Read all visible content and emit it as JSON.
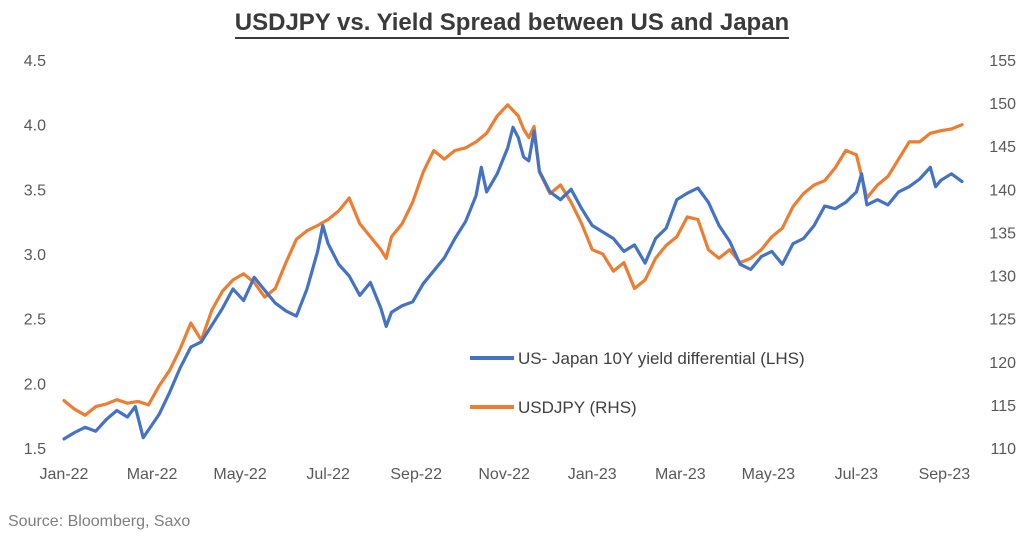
{
  "title": "USDJPY vs. Yield Spread between US and Japan",
  "source": "Source: Bloomberg, Saxo",
  "colors": {
    "spread": "#4472C4",
    "usdjpy": "#ED7D31",
    "tick_text": "#595959"
  },
  "chart_data": {
    "type": "line",
    "title": "USDJPY vs. Yield Spread between US and Japan",
    "xlabel": "",
    "ylabel_left": "",
    "ylabel_right": "",
    "x_range": [
      2022.0,
      2023.7
    ],
    "x_ticks": [
      {
        "label": "Jan-22",
        "t": 2022.0
      },
      {
        "label": "Mar-22",
        "t": 2022.1667
      },
      {
        "label": "May-22",
        "t": 2022.3333
      },
      {
        "label": "Jul-22",
        "t": 2022.5
      },
      {
        "label": "Sep-22",
        "t": 2022.6667
      },
      {
        "label": "Nov-22",
        "t": 2022.8333
      },
      {
        "label": "Jan-23",
        "t": 2023.0
      },
      {
        "label": "Mar-23",
        "t": 2023.1667
      },
      {
        "label": "May-23",
        "t": 2023.3333
      },
      {
        "label": "Jul-23",
        "t": 2023.5
      },
      {
        "label": "Sep-23",
        "t": 2023.6667
      }
    ],
    "ylim_left": [
      1.5,
      4.5
    ],
    "yticks_left": [
      "1.5",
      "2.0",
      "2.5",
      "3.0",
      "3.5",
      "4.0",
      "4.5"
    ],
    "ylim_right": [
      110,
      155
    ],
    "yticks_right": [
      "110",
      "115",
      "120",
      "125",
      "130",
      "135",
      "140",
      "145",
      "150",
      "155"
    ],
    "grid": false,
    "legend_position": "center-right",
    "series": [
      {
        "name": "US- Japan 10Y yield differential (LHS)",
        "axis": "left",
        "color": "#4472C4",
        "points": [
          [
            2022.0,
            1.57
          ],
          [
            2022.02,
            1.62
          ],
          [
            2022.04,
            1.66
          ],
          [
            2022.06,
            1.63
          ],
          [
            2022.08,
            1.72
          ],
          [
            2022.1,
            1.79
          ],
          [
            2022.12,
            1.74
          ],
          [
            2022.135,
            1.82
          ],
          [
            2022.15,
            1.58
          ],
          [
            2022.165,
            1.67
          ],
          [
            2022.18,
            1.76
          ],
          [
            2022.2,
            1.93
          ],
          [
            2022.22,
            2.12
          ],
          [
            2022.24,
            2.28
          ],
          [
            2022.26,
            2.32
          ],
          [
            2022.28,
            2.45
          ],
          [
            2022.3,
            2.58
          ],
          [
            2022.32,
            2.73
          ],
          [
            2022.34,
            2.64
          ],
          [
            2022.36,
            2.82
          ],
          [
            2022.38,
            2.72
          ],
          [
            2022.4,
            2.62
          ],
          [
            2022.42,
            2.56
          ],
          [
            2022.44,
            2.52
          ],
          [
            2022.46,
            2.73
          ],
          [
            2022.48,
            3.02
          ],
          [
            2022.49,
            3.22
          ],
          [
            2022.5,
            3.08
          ],
          [
            2022.52,
            2.92
          ],
          [
            2022.54,
            2.83
          ],
          [
            2022.56,
            2.68
          ],
          [
            2022.58,
            2.78
          ],
          [
            2022.6,
            2.58
          ],
          [
            2022.61,
            2.44
          ],
          [
            2022.62,
            2.55
          ],
          [
            2022.64,
            2.6
          ],
          [
            2022.66,
            2.63
          ],
          [
            2022.68,
            2.77
          ],
          [
            2022.7,
            2.87
          ],
          [
            2022.72,
            2.97
          ],
          [
            2022.74,
            3.12
          ],
          [
            2022.76,
            3.25
          ],
          [
            2022.78,
            3.45
          ],
          [
            2022.79,
            3.67
          ],
          [
            2022.8,
            3.48
          ],
          [
            2022.82,
            3.62
          ],
          [
            2022.84,
            3.82
          ],
          [
            2022.85,
            3.98
          ],
          [
            2022.86,
            3.9
          ],
          [
            2022.87,
            3.75
          ],
          [
            2022.88,
            3.72
          ],
          [
            2022.89,
            3.95
          ],
          [
            2022.9,
            3.64
          ],
          [
            2022.92,
            3.48
          ],
          [
            2022.94,
            3.42
          ],
          [
            2022.96,
            3.5
          ],
          [
            2022.98,
            3.35
          ],
          [
            2023.0,
            3.22
          ],
          [
            2023.02,
            3.17
          ],
          [
            2023.04,
            3.12
          ],
          [
            2023.06,
            3.02
          ],
          [
            2023.08,
            3.07
          ],
          [
            2023.1,
            2.93
          ],
          [
            2023.12,
            3.12
          ],
          [
            2023.14,
            3.2
          ],
          [
            2023.16,
            3.42
          ],
          [
            2023.18,
            3.47
          ],
          [
            2023.2,
            3.51
          ],
          [
            2023.22,
            3.4
          ],
          [
            2023.24,
            3.22
          ],
          [
            2023.26,
            3.1
          ],
          [
            2023.28,
            2.92
          ],
          [
            2023.3,
            2.88
          ],
          [
            2023.32,
            2.98
          ],
          [
            2023.34,
            3.02
          ],
          [
            2023.36,
            2.92
          ],
          [
            2023.38,
            3.08
          ],
          [
            2023.4,
            3.12
          ],
          [
            2023.42,
            3.22
          ],
          [
            2023.44,
            3.37
          ],
          [
            2023.46,
            3.35
          ],
          [
            2023.48,
            3.4
          ],
          [
            2023.5,
            3.48
          ],
          [
            2023.51,
            3.62
          ],
          [
            2023.52,
            3.38
          ],
          [
            2023.54,
            3.42
          ],
          [
            2023.56,
            3.38
          ],
          [
            2023.58,
            3.48
          ],
          [
            2023.6,
            3.52
          ],
          [
            2023.62,
            3.58
          ],
          [
            2023.64,
            3.67
          ],
          [
            2023.65,
            3.52
          ],
          [
            2023.66,
            3.57
          ],
          [
            2023.68,
            3.62
          ],
          [
            2023.7,
            3.56
          ]
        ]
      },
      {
        "name": "USDJPY (RHS)",
        "axis": "right",
        "color": "#ED7D31",
        "points": [
          [
            2022.0,
            115.5
          ],
          [
            2022.02,
            114.5
          ],
          [
            2022.04,
            113.8
          ],
          [
            2022.06,
            114.8
          ],
          [
            2022.08,
            115.1
          ],
          [
            2022.1,
            115.6
          ],
          [
            2022.12,
            115.2
          ],
          [
            2022.14,
            115.4
          ],
          [
            2022.16,
            115.0
          ],
          [
            2022.18,
            117.2
          ],
          [
            2022.2,
            119.0
          ],
          [
            2022.22,
            121.5
          ],
          [
            2022.24,
            124.5
          ],
          [
            2022.26,
            122.5
          ],
          [
            2022.28,
            126.0
          ],
          [
            2022.3,
            128.2
          ],
          [
            2022.32,
            129.5
          ],
          [
            2022.34,
            130.2
          ],
          [
            2022.36,
            129.2
          ],
          [
            2022.38,
            127.5
          ],
          [
            2022.4,
            128.5
          ],
          [
            2022.42,
            131.5
          ],
          [
            2022.44,
            134.2
          ],
          [
            2022.46,
            135.2
          ],
          [
            2022.48,
            135.8
          ],
          [
            2022.5,
            136.5
          ],
          [
            2022.52,
            137.5
          ],
          [
            2022.54,
            139.0
          ],
          [
            2022.56,
            136.0
          ],
          [
            2022.58,
            134.5
          ],
          [
            2022.6,
            133.0
          ],
          [
            2022.61,
            132.0
          ],
          [
            2022.62,
            134.5
          ],
          [
            2022.64,
            136.0
          ],
          [
            2022.66,
            138.5
          ],
          [
            2022.68,
            142.0
          ],
          [
            2022.7,
            144.5
          ],
          [
            2022.72,
            143.5
          ],
          [
            2022.74,
            144.5
          ],
          [
            2022.76,
            144.8
          ],
          [
            2022.78,
            145.5
          ],
          [
            2022.8,
            146.5
          ],
          [
            2022.82,
            148.5
          ],
          [
            2022.84,
            149.8
          ],
          [
            2022.86,
            148.5
          ],
          [
            2022.87,
            147.0
          ],
          [
            2022.88,
            146.0
          ],
          [
            2022.89,
            147.3
          ],
          [
            2022.9,
            142.0
          ],
          [
            2022.92,
            139.5
          ],
          [
            2022.94,
            140.5
          ],
          [
            2022.96,
            138.5
          ],
          [
            2022.98,
            136.0
          ],
          [
            2023.0,
            133.0
          ],
          [
            2023.02,
            132.5
          ],
          [
            2023.04,
            130.5
          ],
          [
            2023.06,
            131.5
          ],
          [
            2023.08,
            128.5
          ],
          [
            2023.1,
            129.5
          ],
          [
            2023.12,
            132.0
          ],
          [
            2023.14,
            133.5
          ],
          [
            2023.16,
            134.5
          ],
          [
            2023.18,
            136.8
          ],
          [
            2023.2,
            136.5
          ],
          [
            2023.22,
            133.0
          ],
          [
            2023.24,
            132.0
          ],
          [
            2023.26,
            133.0
          ],
          [
            2023.28,
            131.5
          ],
          [
            2023.3,
            132.0
          ],
          [
            2023.32,
            133.0
          ],
          [
            2023.34,
            134.5
          ],
          [
            2023.36,
            135.5
          ],
          [
            2023.38,
            138.0
          ],
          [
            2023.4,
            139.5
          ],
          [
            2023.42,
            140.5
          ],
          [
            2023.44,
            141.0
          ],
          [
            2023.46,
            142.5
          ],
          [
            2023.48,
            144.5
          ],
          [
            2023.5,
            144.0
          ],
          [
            2023.51,
            141.5
          ],
          [
            2023.52,
            139.0
          ],
          [
            2023.54,
            140.5
          ],
          [
            2023.56,
            141.5
          ],
          [
            2023.58,
            143.5
          ],
          [
            2023.6,
            145.5
          ],
          [
            2023.62,
            145.5
          ],
          [
            2023.64,
            146.5
          ],
          [
            2023.66,
            146.8
          ],
          [
            2023.68,
            147.0
          ],
          [
            2023.7,
            147.5
          ]
        ]
      }
    ]
  }
}
